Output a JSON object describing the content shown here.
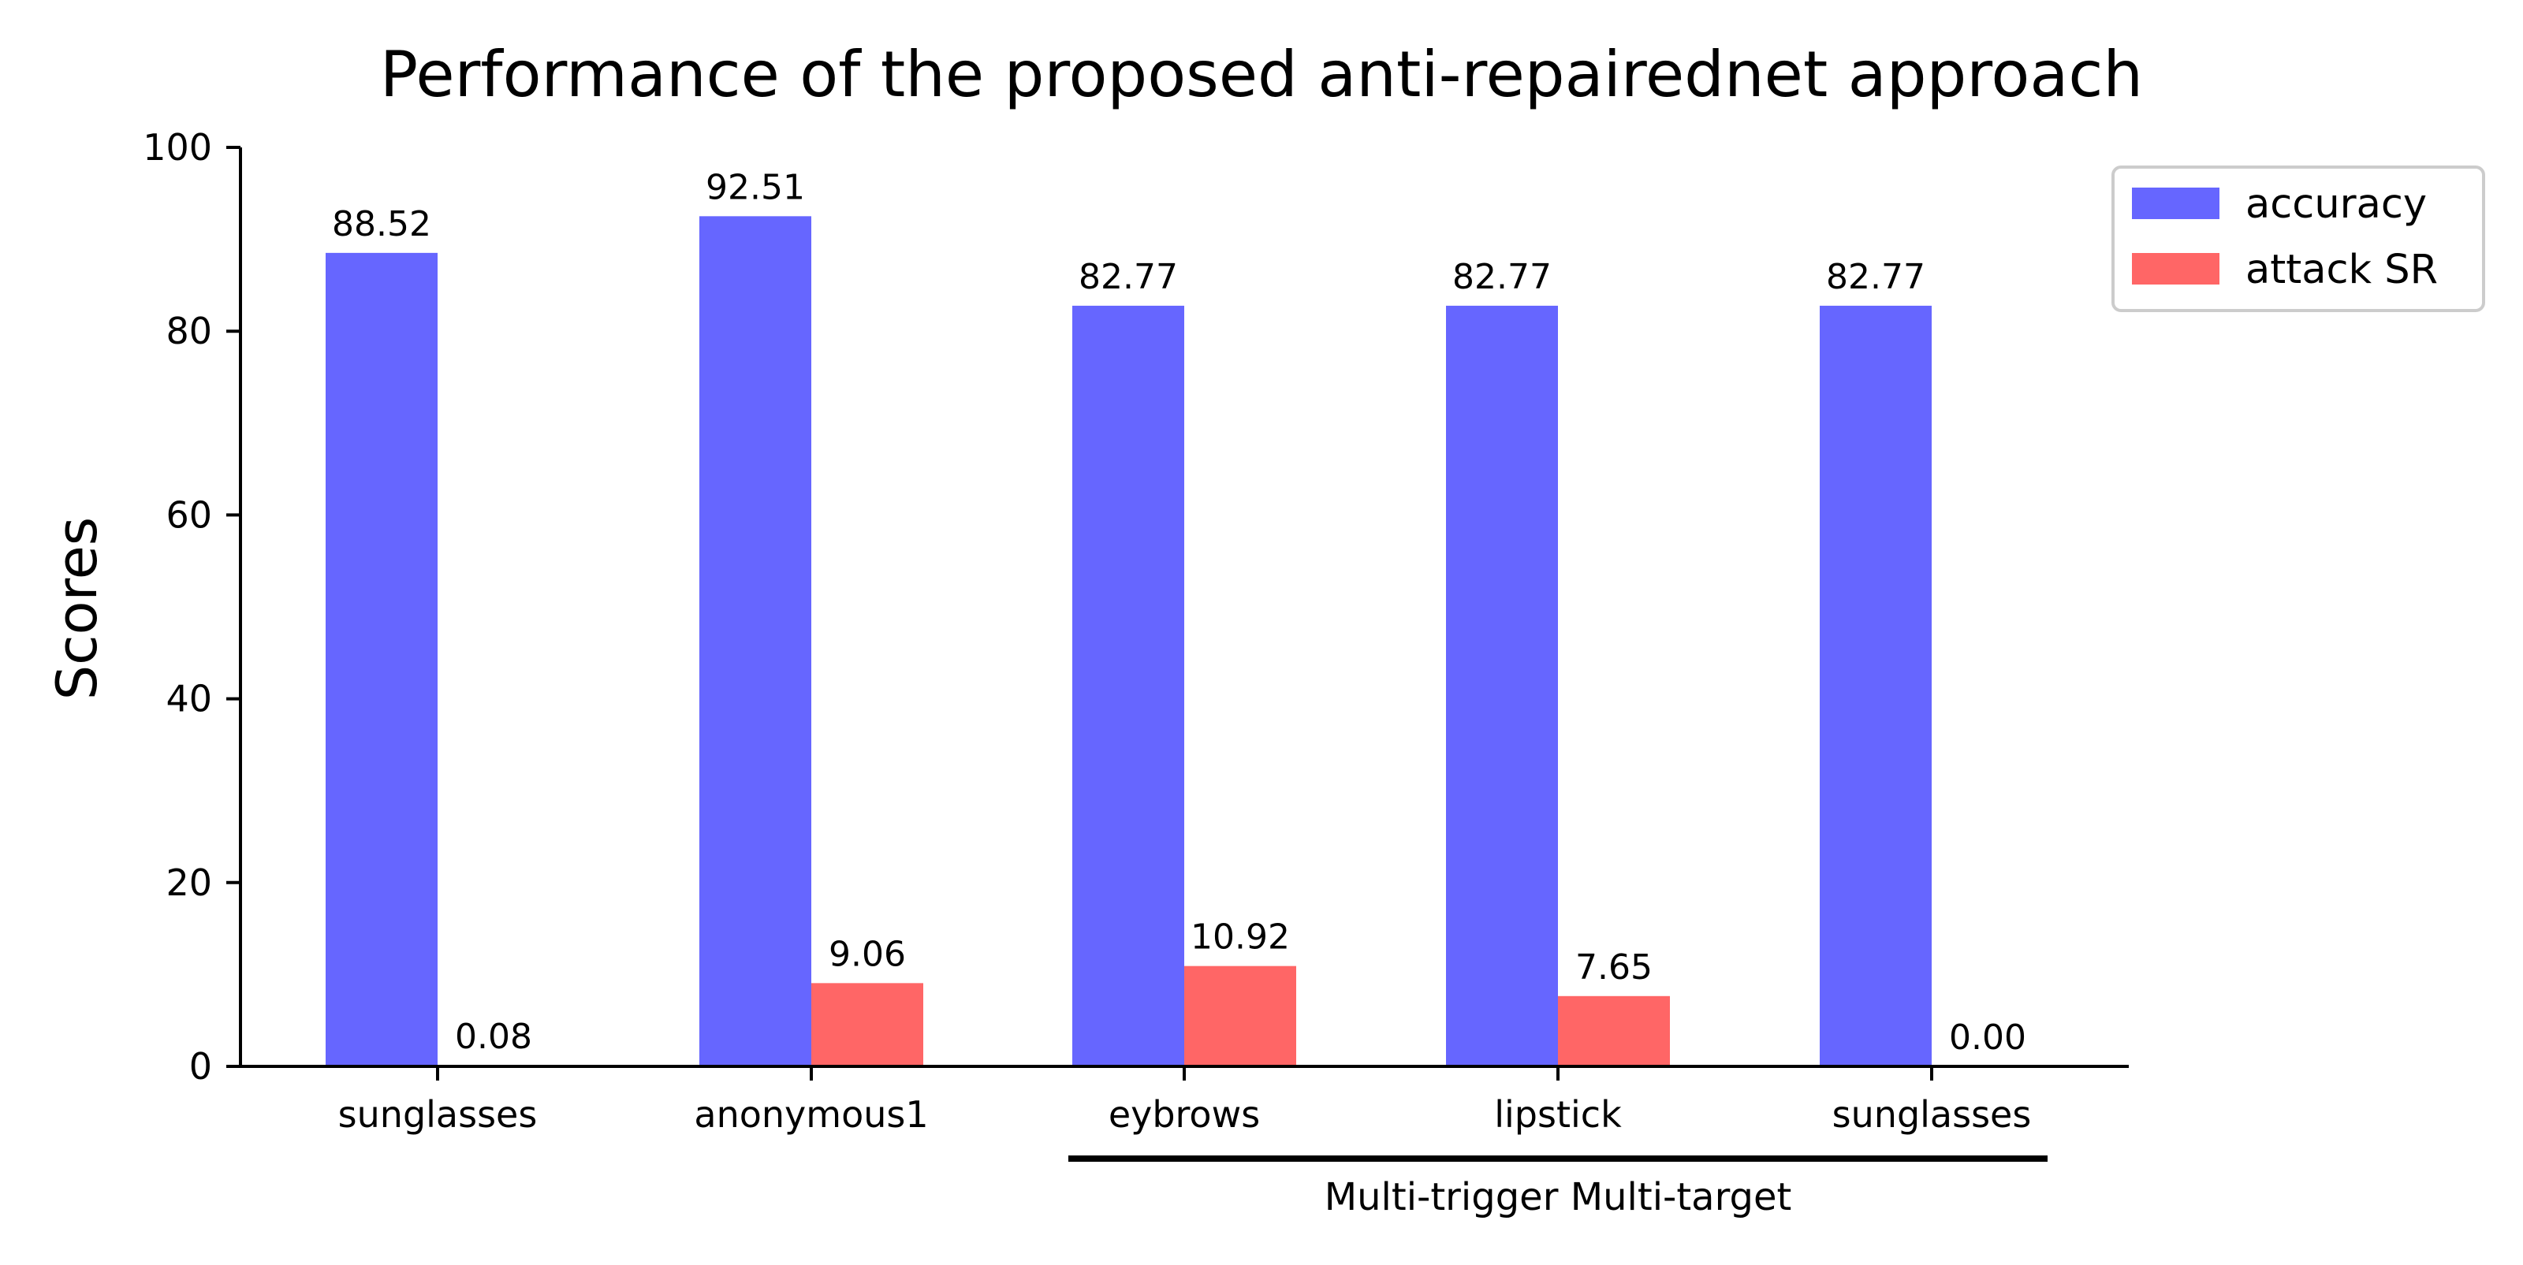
{
  "chart_data": {
    "type": "bar",
    "title": "Performance of the proposed anti-repairednet approach",
    "xlabel": "",
    "ylabel": "Scores",
    "ylim": [
      0,
      100
    ],
    "yticks": [
      0,
      20,
      40,
      60,
      80,
      100
    ],
    "categories": [
      "sunglasses",
      "anonymous1",
      "eybrows",
      "lipstick",
      "sunglasses"
    ],
    "series": [
      {
        "name": "accuracy",
        "color": "#6666ff",
        "values": [
          88.52,
          92.51,
          82.77,
          82.77,
          82.77
        ],
        "labels": [
          "88.52",
          "92.51",
          "82.77",
          "82.77",
          "82.77"
        ]
      },
      {
        "name": "attack SR",
        "color": "#ff6666",
        "values": [
          0.08,
          9.06,
          10.92,
          7.65,
          0.0
        ],
        "labels": [
          "0.08",
          "9.06",
          "10.92",
          "7.65",
          "0.00"
        ]
      }
    ],
    "group_annotation": {
      "text": "Multi-trigger Multi-target",
      "categories": [
        2,
        3,
        4
      ]
    },
    "legend": "top-right outside",
    "grid": false
  }
}
